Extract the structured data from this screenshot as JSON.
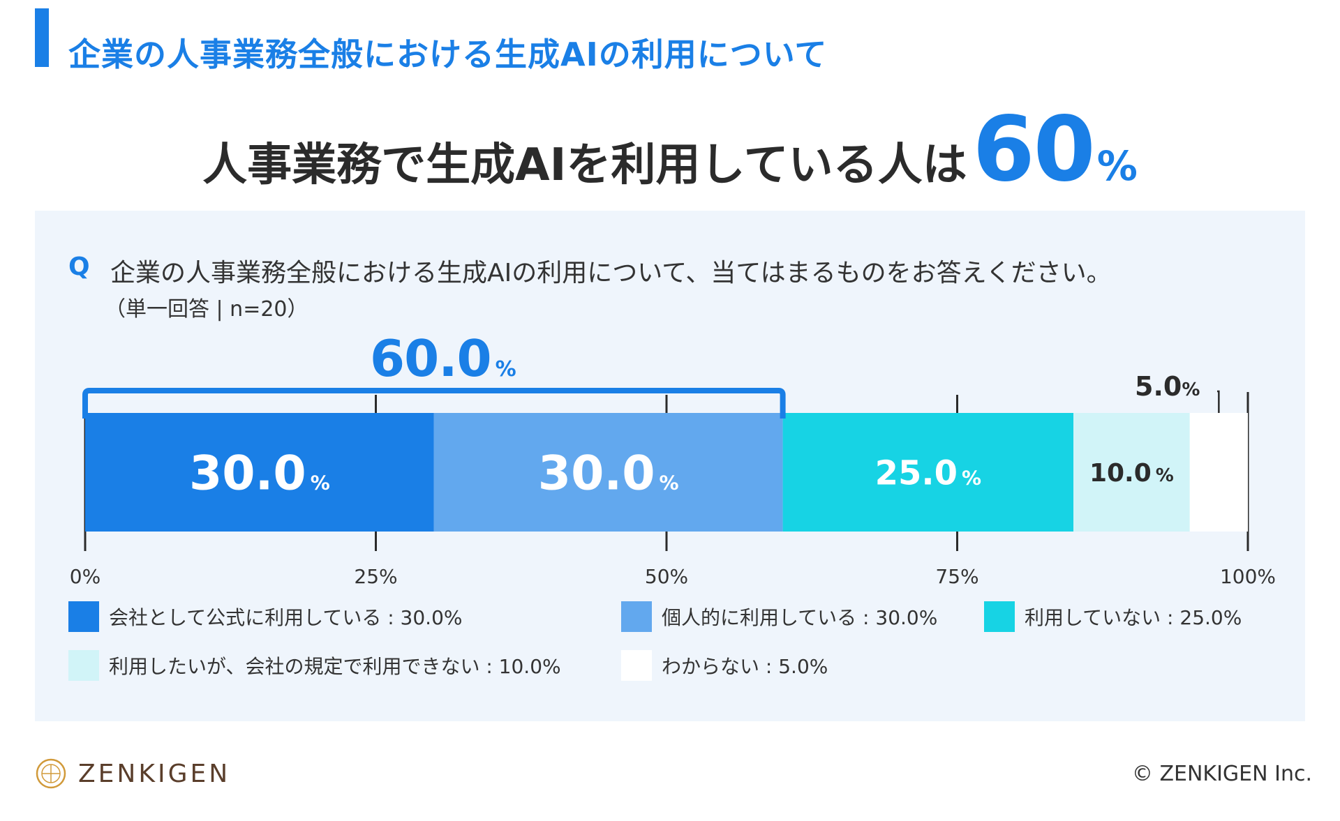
{
  "header": {
    "section_title": "企業の人事業務全般における生成AIの利用について",
    "headline_lead": "人事業務で生成AIを利用している人は",
    "headline_value": "60",
    "headline_unit": "%"
  },
  "question": {
    "mark": "Q",
    "text": "企業の人事業務全般における生成AIの利用について、当てはまるものをお答えください。",
    "note": "（単一回答 | n=20）"
  },
  "annotations": {
    "bracket_value": "60.0",
    "bracket_unit": "%",
    "small_value": "5.0",
    "small_unit": "%"
  },
  "colors": {
    "accent": "#1a7fe6",
    "panel_bg": "#eff5fc",
    "seg1": "#1a7fe6",
    "seg2": "#62a8ee",
    "seg3": "#17d3e4",
    "seg4": "#d1f4f8",
    "seg5": "#ffffff"
  },
  "chart_data": {
    "type": "bar",
    "orientation": "horizontal-stacked-100",
    "title": "企業の人事業務全般における生成AIの利用について",
    "categories": [
      "企業の人事業務全般における生成AIの利用"
    ],
    "series": [
      {
        "name": "会社として公式に利用している",
        "values": [
          30.0
        ],
        "label": "30.0",
        "color": "#1a7fe6",
        "label_color": "#ffffff"
      },
      {
        "name": "個人的に利用している",
        "values": [
          30.0
        ],
        "label": "30.0",
        "color": "#62a8ee",
        "label_color": "#ffffff"
      },
      {
        "name": "利用していない",
        "values": [
          25.0
        ],
        "label": "25.0",
        "color": "#17d3e4",
        "label_color": "#ffffff"
      },
      {
        "name": "利用したいが、会社の規定で利用できない",
        "values": [
          10.0
        ],
        "label": "10.0",
        "color": "#d1f4f8",
        "label_color": "#2b2b2b"
      },
      {
        "name": "わからない",
        "values": [
          5.0
        ],
        "label": "5.0",
        "color": "#ffffff",
        "label_color": "#2b2b2b"
      }
    ],
    "value_unit": "%",
    "xlim": [
      0,
      100
    ],
    "x_ticks": [
      "0%",
      "25%",
      "50%",
      "75%",
      "100%"
    ],
    "legend": [
      "会社として公式に利用している : 30.0%",
      "個人的に利用している : 30.0%",
      "利用していない : 25.0%",
      "利用したいが、会社の規定で利用できない : 10.0%",
      "わからない : 5.0%"
    ],
    "legend_placement": "bottom"
  },
  "footer": {
    "brand": "ZENKIGEN",
    "copyright": "© ZENKIGEN Inc."
  }
}
